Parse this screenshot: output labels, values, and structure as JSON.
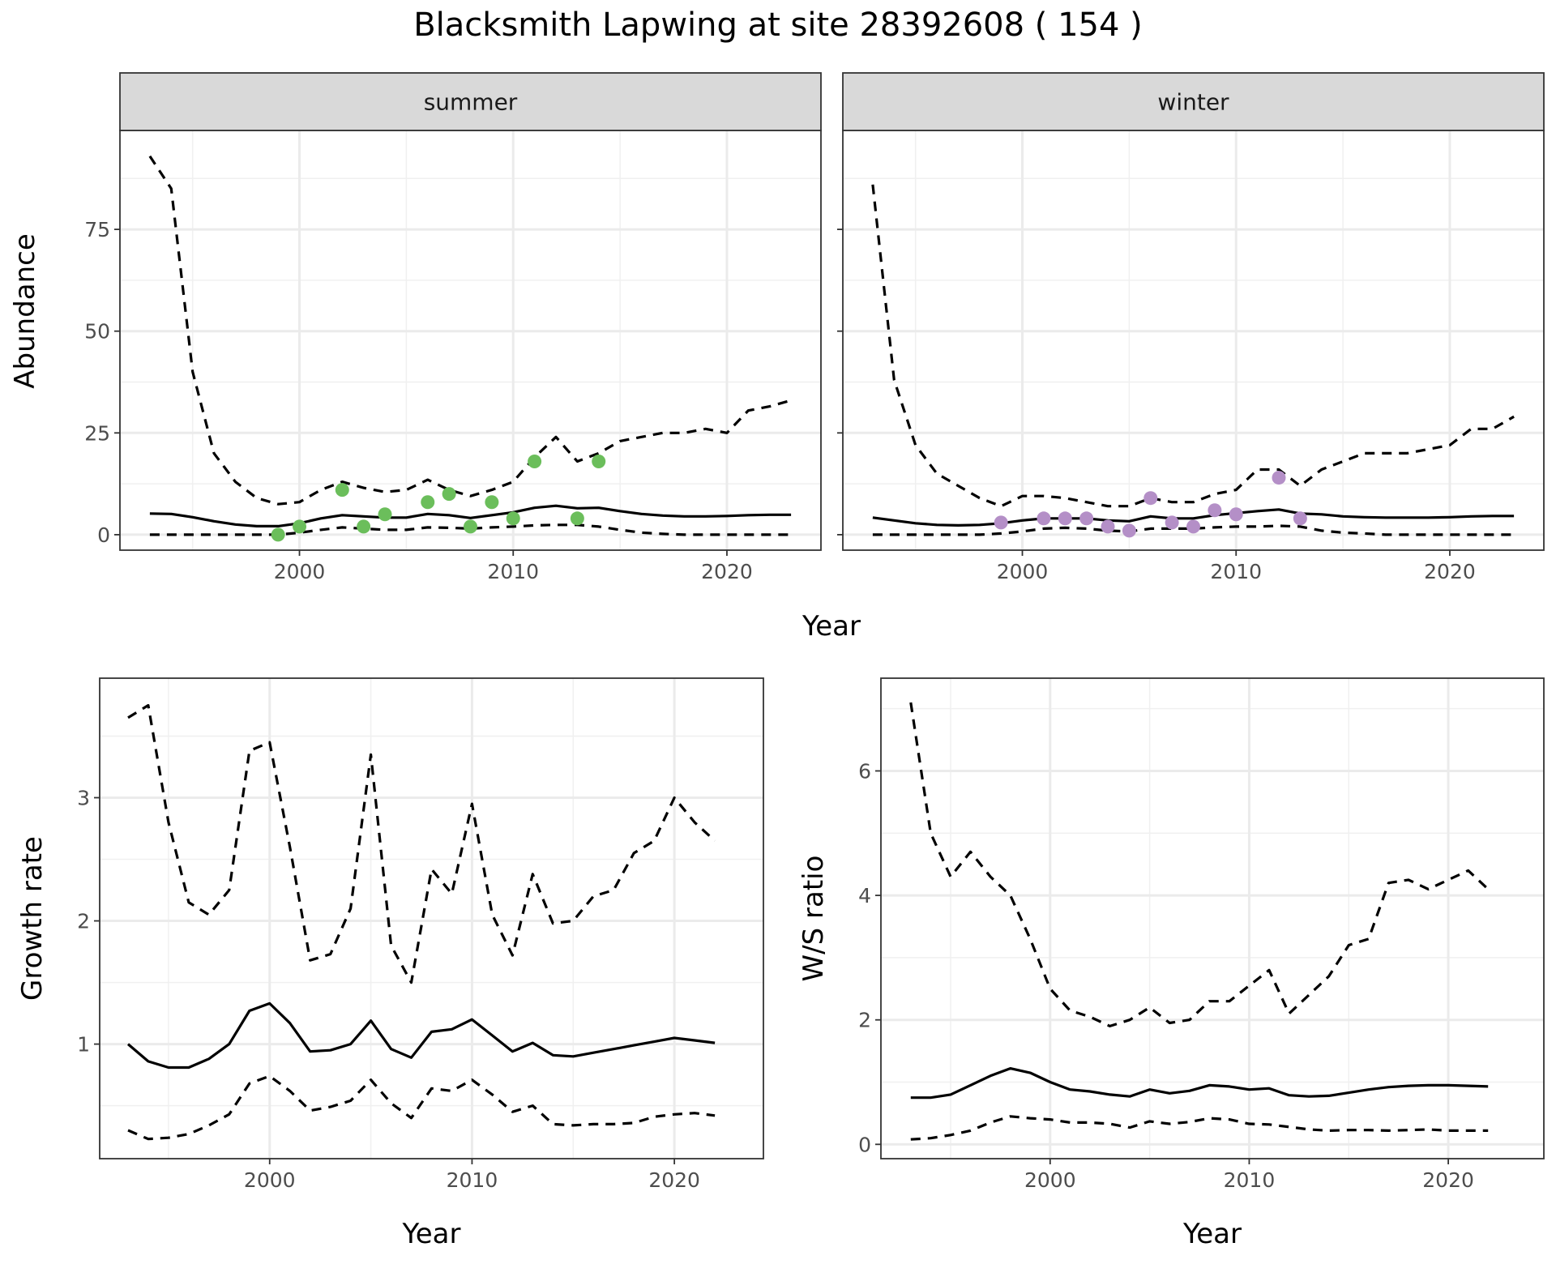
{
  "title": "Blacksmith Lapwing at site 28392608 ( 154 )",
  "chart_data": [
    {
      "type": "line",
      "facet": "summer",
      "xlabel": "Year",
      "ylabel": "Abundance",
      "xlim": [
        1991.6,
        2024.4
      ],
      "ylim": [
        -3.8,
        99.3
      ],
      "xticks": [
        2000,
        2010,
        2020
      ],
      "yticks": [
        0,
        25,
        50,
        75
      ],
      "grid": true,
      "point_color": "#6BBE5B",
      "x": [
        1993,
        1994,
        1995,
        1996,
        1997,
        1998,
        1999,
        2000,
        2001,
        2002,
        2003,
        2004,
        2005,
        2006,
        2007,
        2008,
        2009,
        2010,
        2011,
        2012,
        2013,
        2014,
        2015,
        2016,
        2017,
        2018,
        2019,
        2020,
        2021,
        2022,
        2023
      ],
      "series": [
        {
          "style": "solid",
          "values": [
            5.2,
            5.1,
            4.3,
            3.3,
            2.5,
            2.1,
            2.1,
            2.8,
            4.0,
            4.8,
            4.5,
            4.2,
            4.2,
            5.1,
            4.8,
            4.1,
            4.8,
            5.5,
            6.6,
            7.1,
            6.5,
            6.6,
            5.8,
            5.1,
            4.7,
            4.5,
            4.5,
            4.6,
            4.8,
            4.9,
            4.9
          ]
        },
        {
          "style": "dashed",
          "values": [
            93,
            85,
            40,
            20,
            13,
            9,
            7.5,
            8,
            11,
            13,
            11.5,
            10.5,
            11,
            13.5,
            11,
            9.5,
            11,
            13,
            19,
            24,
            18,
            20,
            23,
            24,
            25,
            25,
            26,
            25,
            30.5,
            31.5,
            33
          ]
        },
        {
          "style": "dashed",
          "values": [
            0,
            0,
            0,
            0,
            0,
            0,
            0,
            0.5,
            1.2,
            1.8,
            1.5,
            1.2,
            1.2,
            1.8,
            1.7,
            1.5,
            1.8,
            2.0,
            2.3,
            2.4,
            2.4,
            2.0,
            1.2,
            0.5,
            0.2,
            0,
            0,
            0,
            0,
            0,
            0
          ]
        }
      ],
      "points": {
        "x": [
          1999,
          2000,
          2002,
          2003,
          2004,
          2006,
          2007,
          2008,
          2009,
          2010,
          2011,
          2013,
          2014
        ],
        "y": [
          0,
          2,
          11,
          2,
          5,
          8,
          10,
          2,
          8,
          4,
          18,
          4,
          18
        ]
      }
    },
    {
      "type": "line",
      "facet": "winter",
      "xlabel": "Year",
      "ylabel": "Abundance",
      "xlim": [
        1991.6,
        2024.4
      ],
      "ylim": [
        -3.8,
        99.3
      ],
      "xticks": [
        2000,
        2010,
        2020
      ],
      "yticks": [
        0,
        25,
        50,
        75
      ],
      "grid": true,
      "point_color": "#B48FC7",
      "x": [
        1993,
        1994,
        1995,
        1996,
        1997,
        1998,
        1999,
        2000,
        2001,
        2002,
        2003,
        2004,
        2005,
        2006,
        2007,
        2008,
        2009,
        2010,
        2011,
        2012,
        2013,
        2014,
        2015,
        2016,
        2017,
        2018,
        2019,
        2020,
        2021,
        2022,
        2023
      ],
      "series": [
        {
          "style": "solid",
          "values": [
            4.2,
            3.5,
            2.8,
            2.4,
            2.3,
            2.4,
            2.8,
            3.5,
            4.0,
            4.0,
            4.0,
            3.5,
            3.3,
            4.5,
            4.0,
            4.0,
            4.8,
            5.3,
            5.8,
            6.2,
            5.2,
            5.0,
            4.5,
            4.3,
            4.2,
            4.2,
            4.2,
            4.3,
            4.5,
            4.6,
            4.6
          ]
        },
        {
          "style": "dashed",
          "values": [
            86,
            38,
            22,
            15,
            12,
            9,
            7,
            9.5,
            9.5,
            9,
            8,
            7,
            7,
            9,
            8,
            8,
            10,
            11,
            16,
            16,
            12,
            16,
            18,
            20,
            20,
            20,
            21,
            22,
            26,
            26,
            29
          ]
        },
        {
          "style": "dashed",
          "values": [
            0,
            0,
            0,
            0,
            0,
            0,
            0.3,
            0.8,
            1.5,
            1.7,
            1.5,
            1.0,
            0.8,
            1.5,
            1.5,
            1.5,
            1.8,
            2.0,
            2.0,
            2.2,
            2.0,
            1.0,
            0.5,
            0.3,
            0,
            0,
            0,
            0,
            0,
            0,
            0
          ]
        }
      ],
      "points": {
        "x": [
          1999,
          2001,
          2002,
          2003,
          2004,
          2005,
          2006,
          2007,
          2008,
          2009,
          2010,
          2012,
          2013
        ],
        "y": [
          3,
          4,
          4,
          4,
          2,
          1,
          9,
          3,
          2,
          6,
          5,
          14,
          4
        ]
      }
    },
    {
      "type": "line",
      "xlabel": "Year",
      "ylabel": "Growth rate",
      "xlim": [
        1991.6,
        2024.4
      ],
      "ylim": [
        0.07,
        3.97
      ],
      "xticks": [
        2000,
        2010,
        2020
      ],
      "yticks": [
        1,
        2,
        3
      ],
      "grid": true,
      "x": [
        1993,
        1994,
        1995,
        1996,
        1997,
        1998,
        1999,
        2000,
        2001,
        2002,
        2003,
        2004,
        2005,
        2006,
        2007,
        2008,
        2009,
        2010,
        2011,
        2012,
        2013,
        2014,
        2015,
        2016,
        2017,
        2018,
        2019,
        2020,
        2021,
        2022
      ],
      "series": [
        {
          "style": "solid",
          "values": [
            1.0,
            0.86,
            0.81,
            0.81,
            0.88,
            1.0,
            1.27,
            1.33,
            1.17,
            0.94,
            0.95,
            1.0,
            1.19,
            0.96,
            0.89,
            1.1,
            1.12,
            1.2,
            1.07,
            0.94,
            1.01,
            0.91,
            0.9,
            0.93,
            0.96,
            0.99,
            1.02,
            1.05,
            1.03,
            1.01
          ]
        },
        {
          "style": "dashed",
          "values": [
            3.65,
            3.75,
            2.8,
            2.15,
            2.05,
            2.25,
            3.38,
            3.45,
            2.6,
            1.68,
            1.73,
            2.1,
            3.35,
            1.8,
            1.5,
            2.42,
            2.22,
            2.95,
            2.05,
            1.72,
            2.38,
            1.98,
            2.0,
            2.2,
            2.25,
            2.55,
            2.65,
            3.0,
            2.8,
            2.65
          ]
        },
        {
          "style": "dashed",
          "values": [
            0.3,
            0.23,
            0.24,
            0.27,
            0.34,
            0.43,
            0.68,
            0.74,
            0.62,
            0.46,
            0.49,
            0.54,
            0.71,
            0.52,
            0.4,
            0.64,
            0.62,
            0.71,
            0.59,
            0.45,
            0.5,
            0.35,
            0.34,
            0.35,
            0.35,
            0.36,
            0.41,
            0.43,
            0.44,
            0.42
          ]
        }
      ]
    },
    {
      "type": "line",
      "xlabel": "Year",
      "ylabel": "W/S ratio",
      "xlim": [
        1991.5,
        2024.8
      ],
      "ylim": [
        -0.23,
        7.49
      ],
      "xticks": [
        2000,
        2010,
        2020
      ],
      "yticks": [
        0,
        2,
        4,
        6
      ],
      "grid": true,
      "x": [
        1993,
        1994,
        1995,
        1996,
        1997,
        1998,
        1999,
        2000,
        2001,
        2002,
        2003,
        2004,
        2005,
        2006,
        2007,
        2008,
        2009,
        2010,
        2011,
        2012,
        2013,
        2014,
        2015,
        2016,
        2017,
        2018,
        2019,
        2020,
        2021,
        2022
      ],
      "series": [
        {
          "style": "solid",
          "values": [
            0.75,
            0.75,
            0.8,
            0.95,
            1.1,
            1.22,
            1.15,
            1.0,
            0.88,
            0.85,
            0.8,
            0.77,
            0.88,
            0.82,
            0.86,
            0.95,
            0.93,
            0.88,
            0.9,
            0.79,
            0.77,
            0.78,
            0.83,
            0.88,
            0.92,
            0.94,
            0.95,
            0.95,
            0.94,
            0.93
          ]
        },
        {
          "style": "dashed",
          "values": [
            7.1,
            5.0,
            4.3,
            4.7,
            4.3,
            4.0,
            3.3,
            2.5,
            2.15,
            2.05,
            1.9,
            2.0,
            2.2,
            1.95,
            2.0,
            2.3,
            2.3,
            2.55,
            2.8,
            2.1,
            2.4,
            2.7,
            3.2,
            3.3,
            4.2,
            4.25,
            4.1,
            4.25,
            4.4,
            4.1
          ]
        },
        {
          "style": "dashed",
          "values": [
            0.08,
            0.1,
            0.15,
            0.22,
            0.35,
            0.45,
            0.42,
            0.4,
            0.35,
            0.35,
            0.33,
            0.27,
            0.37,
            0.33,
            0.36,
            0.42,
            0.4,
            0.33,
            0.32,
            0.28,
            0.24,
            0.22,
            0.23,
            0.23,
            0.22,
            0.23,
            0.24,
            0.22,
            0.22,
            0.22
          ]
        }
      ]
    }
  ]
}
